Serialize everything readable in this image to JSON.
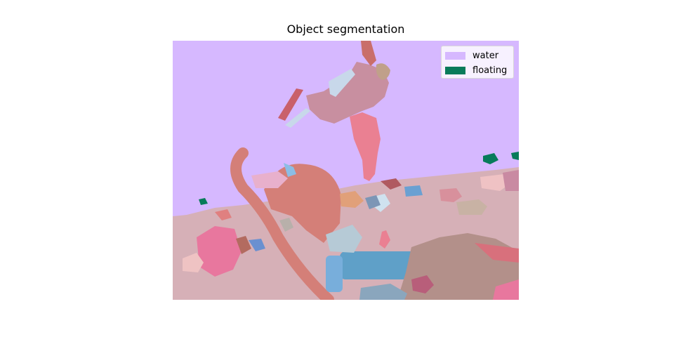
{
  "title": "Object segmentation",
  "legend": [
    {
      "label": "water",
      "color": "#d6b8ff"
    },
    {
      "label": "floating",
      "color": "#087b5a"
    }
  ],
  "colors": {
    "water": "#d6b8ff",
    "floating": "#087b5a",
    "seabed": "#d6b0b7"
  }
}
